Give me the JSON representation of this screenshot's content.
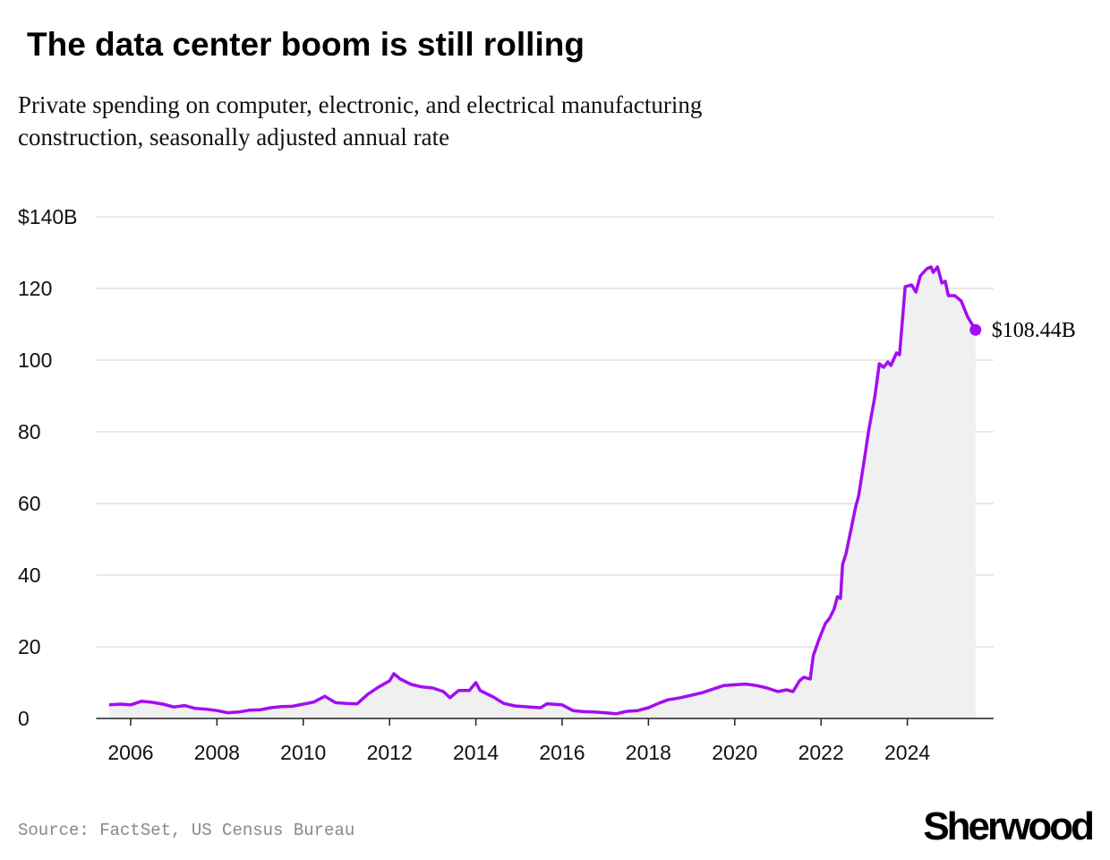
{
  "chart_data": {
    "type": "line",
    "title": "The data center boom is still rolling",
    "subtitle": [
      "Private spending on computer, electronic, and electrical manufacturing",
      "construction, seasonally adjusted annual rate"
    ],
    "source": "Source: FactSet, US Census Bureau",
    "logo": "Sherwood",
    "xlim": [
      2005.2,
      2026
    ],
    "xticks": [
      2006,
      2008,
      2010,
      2012,
      2014,
      2016,
      2018,
      2020,
      2022,
      2024
    ],
    "ylim": [
      0,
      140
    ],
    "yticks": [
      0,
      20,
      40,
      60,
      80,
      100,
      120,
      {
        "value": 140,
        "label": "$140B"
      }
    ],
    "grid": true,
    "series": [
      {
        "color": "#a30df0",
        "x": [
          2005.5,
          2005.75,
          2006,
          2006.25,
          2006.5,
          2006.75,
          2007,
          2007.25,
          2007.5,
          2007.75,
          2008,
          2008.25,
          2008.5,
          2008.75,
          2009,
          2009.25,
          2009.5,
          2009.75,
          2010,
          2010.25,
          2010.5,
          2010.75,
          2011,
          2011.25,
          2011.5,
          2011.75,
          2012,
          2012.1,
          2012.25,
          2012.5,
          2012.75,
          2013,
          2013.25,
          2013.4,
          2013.6,
          2013.85,
          2014,
          2014.1,
          2014.4,
          2014.65,
          2014.9,
          2015.25,
          2015.5,
          2015.65,
          2016,
          2016.25,
          2016.5,
          2016.75,
          2017,
          2017.25,
          2017.5,
          2017.75,
          2018,
          2018.25,
          2018.45,
          2018.75,
          2019,
          2019.25,
          2019.5,
          2019.75,
          2020,
          2020.25,
          2020.5,
          2020.75,
          2021,
          2021.2,
          2021.35,
          2021.5,
          2021.6,
          2021.75,
          2021.82,
          2021.95,
          2022.1,
          2022.2,
          2022.3,
          2022.38,
          2022.45,
          2022.5,
          2022.58,
          2022.7,
          2022.8,
          2022.87,
          2023,
          2023.1,
          2023.25,
          2023.35,
          2023.45,
          2023.55,
          2023.62,
          2023.75,
          2023.82,
          2023.95,
          2024.1,
          2024.2,
          2024.3,
          2024.45,
          2024.55,
          2024.6,
          2024.7,
          2024.8,
          2024.88,
          2024.95,
          2025.1,
          2025.25,
          2025.4,
          2025.58
        ],
        "values": [
          3.8,
          4,
          3.8,
          4.8,
          4.5,
          4,
          3.2,
          3.6,
          2.8,
          2.6,
          2.2,
          1.6,
          1.8,
          2.3,
          2.4,
          3,
          3.3,
          3.4,
          4,
          4.6,
          6.2,
          4.4,
          4.2,
          4.1,
          6.8,
          8.8,
          10.5,
          12.5,
          11,
          9.5,
          8.8,
          8.5,
          7.5,
          5.8,
          7.8,
          7.8,
          10,
          7.8,
          6,
          4.2,
          3.5,
          3.2,
          3,
          4.1,
          3.8,
          2.2,
          1.9,
          1.8,
          1.6,
          1.3,
          2,
          2.2,
          3,
          4.3,
          5.2,
          5.8,
          6.5,
          7.2,
          8.2,
          9.2,
          9.4,
          9.6,
          9.2,
          8.5,
          7.5,
          8,
          7.5,
          10.5,
          11.5,
          11,
          17.5,
          22,
          26.5,
          28,
          30.5,
          34,
          33.5,
          43,
          46,
          53,
          59,
          62,
          72,
          80,
          90,
          99,
          98,
          99.5,
          98.5,
          102,
          101.5,
          120.5,
          121,
          119,
          123.5,
          125.5,
          126,
          124.5,
          126,
          121.5,
          122,
          118,
          118,
          116.5,
          112,
          108.44
        ]
      }
    ],
    "last_value_label": "$108.44B"
  }
}
